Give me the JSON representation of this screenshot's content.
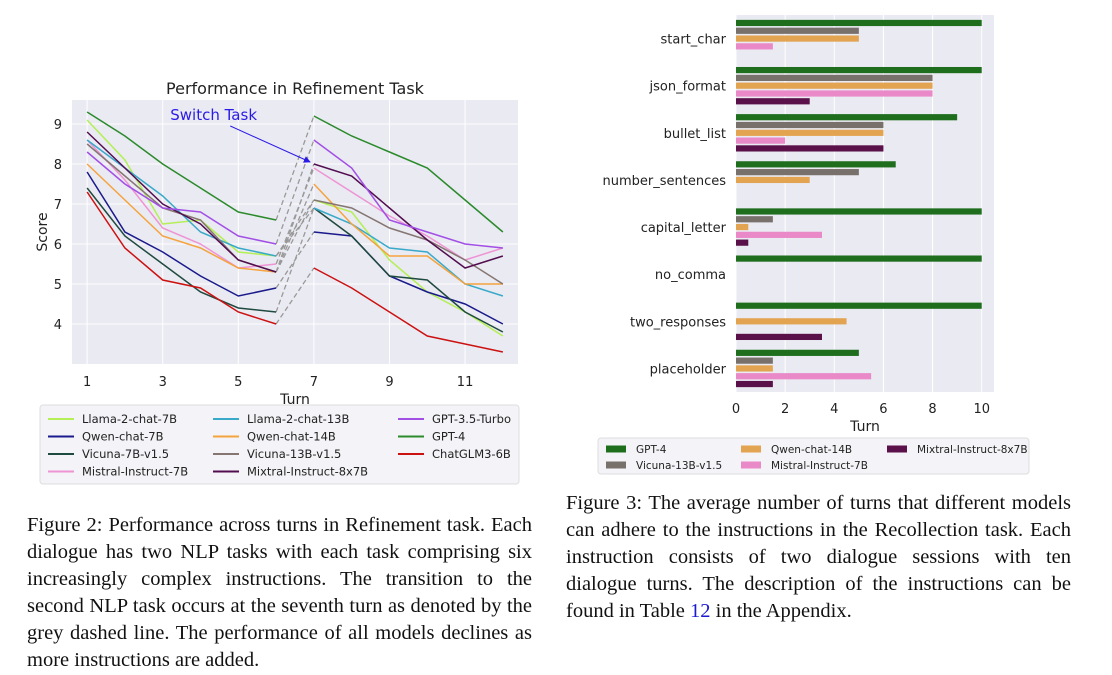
{
  "figures": [
    {
      "caption": {
        "label": "Figure 2:",
        "text": "Performance across turns in Refinement task. Each dialogue has two NLP tasks with each task comprising six increasingly complex instructions. The transition to the second NLP task occurs at the seventh turn as denoted by the grey dashed line. The performance of all models declines as more instructions are added."
      }
    },
    {
      "caption": {
        "label": "Figure 3:",
        "text_before": "The average number of turns that different models can adhere to the instructions in the Recollection task. Each instruction consists of two dialogue sessions with ten dialogue turns. The description of the instructions can be found in Table ",
        "ref": "12",
        "text_after": " in the Appendix."
      }
    }
  ],
  "chart_data": [
    {
      "type": "line",
      "title": "Performance in Refinement Task",
      "xlabel": "Turn",
      "ylabel": "Score",
      "xlim": [
        0.6,
        12.4
      ],
      "ylim": [
        3.0,
        9.6
      ],
      "xticks": [
        1,
        3,
        5,
        7,
        9,
        11
      ],
      "yticks": [
        4,
        5,
        6,
        7,
        8,
        9
      ],
      "grid": true,
      "annotation": {
        "text": "Switch Task",
        "color": "#2a1ae6",
        "text_at": [
          3.2,
          9.1
        ],
        "arrow_to": [
          6.9,
          8.05
        ]
      },
      "switch_lines": {
        "from_turn": 6,
        "to_turn": 7,
        "color": "#999999",
        "style": "dashed"
      },
      "x": [
        1,
        2,
        3,
        4,
        5,
        6,
        7,
        8,
        9,
        10,
        11,
        12
      ],
      "series": [
        {
          "name": "Llama-2-chat-7B",
          "color": "#b3ef55",
          "values": [
            9.1,
            8.1,
            6.5,
            6.6,
            5.8,
            5.7,
            7.1,
            6.8,
            5.6,
            4.8,
            4.3,
            3.7
          ]
        },
        {
          "name": "Qwen-chat-7B",
          "color": "#1a1a8c",
          "values": [
            7.8,
            6.3,
            5.8,
            5.2,
            4.7,
            4.9,
            6.3,
            6.2,
            5.2,
            4.8,
            4.5,
            4.0
          ]
        },
        {
          "name": "Vicuna-7B-v1.5",
          "color": "#1f4a3f",
          "values": [
            7.4,
            6.2,
            5.5,
            4.8,
            4.4,
            4.3,
            6.9,
            6.2,
            5.2,
            5.1,
            4.3,
            3.8
          ]
        },
        {
          "name": "Mistral-Instruct-7B",
          "color": "#ee94d4",
          "values": [
            8.6,
            7.6,
            6.4,
            6.0,
            5.4,
            5.5,
            7.9,
            7.3,
            6.7,
            6.2,
            5.6,
            5.9
          ]
        },
        {
          "name": "Llama-2-chat-13B",
          "color": "#39a9c9",
          "values": [
            8.6,
            7.9,
            7.2,
            6.3,
            5.9,
            5.7,
            6.9,
            6.5,
            5.9,
            5.8,
            5.0,
            4.7
          ]
        },
        {
          "name": "Qwen-chat-14B",
          "color": "#f4a33d",
          "values": [
            8.0,
            7.1,
            6.2,
            5.9,
            5.4,
            5.3,
            7.5,
            6.5,
            5.7,
            5.7,
            5.0,
            5.0
          ]
        },
        {
          "name": "Vicuna-13B-v1.5",
          "color": "#857672",
          "values": [
            8.5,
            7.7,
            6.9,
            6.6,
            5.6,
            5.3,
            7.1,
            6.9,
            6.4,
            6.1,
            5.6,
            5.0
          ]
        },
        {
          "name": "Mixtral-Instruct-8x7B",
          "color": "#520d4f",
          "values": [
            8.8,
            7.9,
            7.0,
            6.5,
            5.6,
            5.3,
            8.0,
            7.7,
            6.9,
            6.1,
            5.4,
            5.7
          ]
        },
        {
          "name": "GPT-3.5-Turbo",
          "color": "#a24fe5",
          "values": [
            8.3,
            7.5,
            6.9,
            6.8,
            6.2,
            6.0,
            8.6,
            7.9,
            6.6,
            6.3,
            6.0,
            5.9
          ]
        },
        {
          "name": "GPT-4",
          "color": "#2b8a2b",
          "values": [
            9.3,
            8.7,
            8.0,
            7.4,
            6.8,
            6.6,
            9.2,
            8.7,
            8.3,
            7.9,
            7.1,
            6.3
          ]
        },
        {
          "name": "ChatGLM3-6B",
          "color": "#cc1111",
          "values": [
            7.3,
            5.9,
            5.1,
            4.9,
            4.3,
            4.0,
            5.4,
            4.9,
            4.3,
            3.7,
            3.5,
            3.3
          ]
        }
      ]
    },
    {
      "type": "bar",
      "orientation": "horizontal",
      "xlabel": "Turn",
      "xlim": [
        0,
        10.5
      ],
      "xticks": [
        0,
        2,
        4,
        6,
        8,
        10
      ],
      "grid": true,
      "categories": [
        "start_char",
        "json_format",
        "bullet_list",
        "number_sentences",
        "capital_letter",
        "no_comma",
        "two_responses",
        "placeholder"
      ],
      "series": [
        {
          "name": "GPT-4",
          "color": "#1e6e1e",
          "values": [
            10,
            10,
            9,
            6.5,
            10,
            10,
            10,
            5
          ]
        },
        {
          "name": "Vicuna-13B-v1.5",
          "color": "#78706a",
          "values": [
            5,
            8,
            6,
            5,
            1.5,
            0,
            0,
            1.5
          ]
        },
        {
          "name": "Qwen-chat-14B",
          "color": "#e2a451",
          "values": [
            5,
            8,
            6,
            3,
            0.5,
            0,
            4.5,
            1.5
          ]
        },
        {
          "name": "Mistral-Instruct-7B",
          "color": "#ea89c8",
          "values": [
            1.5,
            8,
            2,
            0,
            3.5,
            0,
            0,
            5.5
          ]
        },
        {
          "name": "Mixtral-Instruct-8x7B",
          "color": "#5a1048",
          "values": [
            0,
            3,
            6,
            0,
            0.5,
            0,
            3.5,
            1.5
          ]
        }
      ],
      "legend_order": [
        "GPT-4",
        "Qwen-chat-14B",
        "Mixtral-Instruct-8x7B",
        "Vicuna-13B-v1.5",
        "Mistral-Instruct-7B"
      ]
    }
  ]
}
